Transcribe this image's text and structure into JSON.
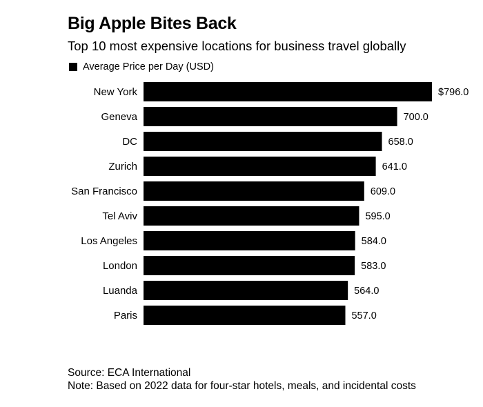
{
  "chart_data": {
    "type": "bar",
    "orientation": "horizontal",
    "title": "Big Apple Bites Back",
    "subtitle": "Top 10 most expensive locations for business travel globally",
    "legend": [
      "Average Price per Day (USD)"
    ],
    "categories": [
      "New York",
      "Geneva",
      "DC",
      "Zurich",
      "San Francisco",
      "Tel Aviv",
      "Los Angeles",
      "London",
      "Luanda",
      "Paris"
    ],
    "values": [
      796.0,
      700.0,
      658.0,
      641.0,
      609.0,
      595.0,
      584.0,
      583.0,
      564.0,
      557.0
    ],
    "value_labels": [
      "$796.0",
      "700.0",
      "658.0",
      "641.0",
      "609.0",
      "595.0",
      "584.0",
      "583.0",
      "564.0",
      "557.0"
    ],
    "xlim": [
      0,
      796
    ],
    "bar_color": "#000000"
  },
  "footer": {
    "source": "Source: ECA International",
    "note": "Note: Based on 2022 data for four-star hotels, meals, and incidental costs"
  }
}
